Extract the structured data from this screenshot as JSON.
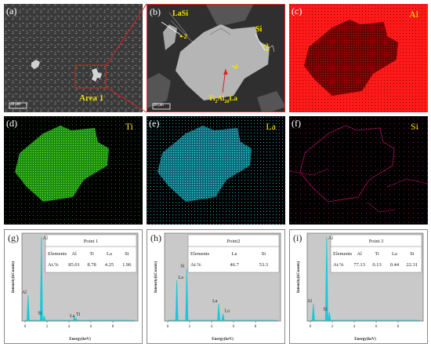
{
  "row1": {
    "a": {
      "label": "(a)",
      "area_label": "Area 1",
      "scale_bar": "20 μm"
    },
    "b": {
      "label": "(b)",
      "phase_lasi": "LaSi",
      "phase_si": "Si",
      "phase_ti": "Ti",
      "phase_ti_sub": "2",
      "phase_al": "Al",
      "phase_al_sub": "20",
      "phase_la": "La",
      "point1": "1",
      "point2": "2",
      "point3": "3",
      "scale_bar": "20 μm"
    },
    "c": {
      "label": "(c)",
      "element": "Al",
      "color": "#ff1010"
    }
  },
  "row2": {
    "d": {
      "label": "(d)",
      "element": "Ti",
      "color": "#30d010"
    },
    "e": {
      "label": "(e)",
      "element": "La",
      "color": "#20d0e0"
    },
    "f": {
      "label": "(f)",
      "element": "Si",
      "color": "#e0157a"
    }
  },
  "spectra": [
    {
      "label": "(g)",
      "title": "Point 1",
      "headers": [
        "Elements",
        "Al",
        "Ti",
        "La",
        "Si"
      ],
      "values": [
        "At.%",
        "85.01",
        "8.78",
        "4.25",
        "1.96"
      ],
      "peaks": [
        "Al",
        "Al",
        "Si",
        "Ti",
        "La"
      ],
      "ylabel": "Intensity(kCounts)",
      "xlabel": "Energy(keV)",
      "xticks": [
        "0",
        "2",
        "4",
        "6",
        "8"
      ]
    },
    {
      "label": "(h)",
      "title": "Point2",
      "headers": [
        "Elements",
        "La",
        "Si"
      ],
      "values": [
        "At.%",
        "46.7",
        "53.3"
      ],
      "peaks": [
        "Si",
        "La",
        "La",
        "La"
      ],
      "ylabel": "Intensity(kCounts)",
      "xlabel": "Energy(keV)",
      "xticks": [
        "0",
        "2",
        "4",
        "6",
        "8"
      ]
    },
    {
      "label": "(i)",
      "title": "Point 3",
      "headers": [
        "Elements",
        "Al",
        "Ti",
        "La",
        "Si"
      ],
      "values": [
        "At.%",
        "77.13",
        "0.13",
        "0.44",
        "22.31"
      ],
      "peaks": [
        "Al",
        "Al",
        "Si"
      ],
      "ylabel": "Intensity(kCounts)",
      "xlabel": "Energy(keV)",
      "xticks": [
        "0",
        "2",
        "4",
        "6",
        "8"
      ]
    }
  ],
  "colors": {
    "spectrum_fill": "#19c8d8",
    "spectrum_bg": "#c9c9c9",
    "label_yellow": "#f5e000",
    "zoom_red": "#e02020"
  }
}
